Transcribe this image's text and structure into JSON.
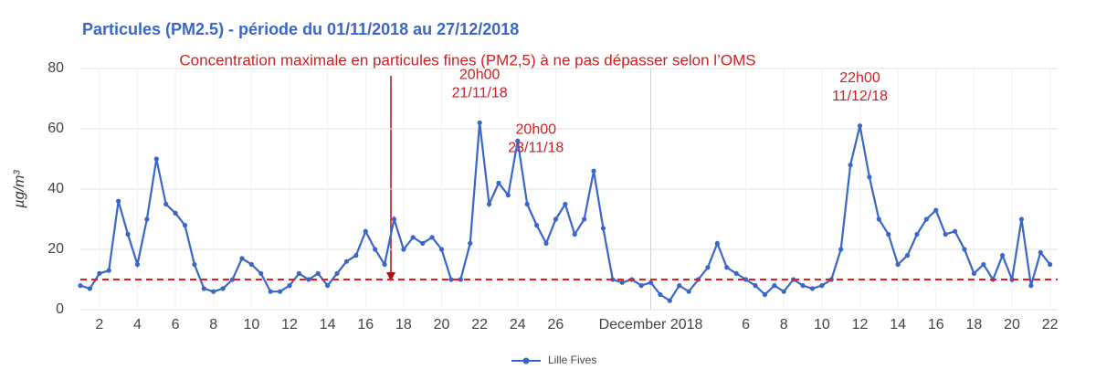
{
  "chart_data": {
    "type": "line",
    "title": "Particules (PM2.5) - période du 01/11/2018 au 27/12/2018",
    "y_label": "µg/m³",
    "annotation": "Concentration maximale en particules fines (PM2,5) à ne pas dépasser selon l’OMS",
    "peak_labels": [
      {
        "lines": [
          "20h00",
          "21/11/18"
        ]
      },
      {
        "lines": [
          "20h00",
          "23/11/18"
        ]
      },
      {
        "lines": [
          "22h00",
          "11/12/18"
        ]
      }
    ],
    "threshold": 10,
    "threshold_color": "#e02020",
    "grid": true,
    "legend": "bottom",
    "xlim": [
      0,
      51.4
    ],
    "ylim": [
      0,
      80
    ],
    "yticks": [
      0,
      20,
      40,
      60,
      80
    ],
    "xticks": [
      {
        "value": 1,
        "label": "2"
      },
      {
        "value": 3,
        "label": "4"
      },
      {
        "value": 5,
        "label": "6"
      },
      {
        "value": 7,
        "label": "8"
      },
      {
        "value": 9,
        "label": "10"
      },
      {
        "value": 11,
        "label": "12"
      },
      {
        "value": 13,
        "label": "14"
      },
      {
        "value": 15,
        "label": "16"
      },
      {
        "value": 17,
        "label": "18"
      },
      {
        "value": 19,
        "label": "20"
      },
      {
        "value": 21,
        "label": "22"
      },
      {
        "value": 23,
        "label": "24"
      },
      {
        "value": 25,
        "label": "26"
      },
      {
        "value": 30,
        "label": "December 2018"
      },
      {
        "value": 35,
        "label": "6"
      },
      {
        "value": 37,
        "label": "8"
      },
      {
        "value": 39,
        "label": "10"
      },
      {
        "value": 41,
        "label": "12"
      },
      {
        "value": 43,
        "label": "14"
      },
      {
        "value": 45,
        "label": "16"
      },
      {
        "value": 47,
        "label": "18"
      },
      {
        "value": 49,
        "label": "20"
      },
      {
        "value": 51,
        "label": "22"
      }
    ],
    "x": [
      0,
      0.5,
      1,
      1.5,
      2,
      2.5,
      3,
      3.5,
      4,
      4.5,
      5,
      5.5,
      6,
      6.5,
      7,
      7.5,
      8,
      8.5,
      9,
      9.5,
      10,
      10.5,
      11,
      11.5,
      12,
      12.5,
      13,
      13.5,
      14,
      14.5,
      15,
      15.5,
      16,
      16.5,
      17,
      17.5,
      18,
      18.5,
      19,
      19.5,
      20,
      20.5,
      21,
      21.5,
      22,
      22.5,
      23,
      23.5,
      24,
      24.5,
      25,
      25.5,
      26,
      26.5,
      27,
      27.5,
      28,
      28.5,
      29,
      29.5,
      30,
      30.5,
      31,
      31.5,
      32,
      32.5,
      33,
      33.5,
      34,
      34.5,
      35,
      35.5,
      36,
      36.5,
      37,
      37.5,
      38,
      38.5,
      39,
      39.5,
      40,
      40.5,
      41,
      41.5,
      42,
      42.5,
      43,
      43.5,
      44,
      44.5,
      45,
      45.5,
      46,
      46.5,
      47,
      47.5,
      48,
      48.5,
      49,
      49.5,
      50,
      50.5,
      51
    ],
    "series": [
      {
        "name": "Lille Fives",
        "color": "#3a66c8",
        "values": [
          8,
          7,
          12,
          13,
          36,
          25,
          15,
          30,
          50,
          35,
          32,
          28,
          15,
          7,
          6,
          7,
          10,
          17,
          15,
          12,
          6,
          6,
          8,
          12,
          10,
          12,
          8,
          12,
          16,
          18,
          26,
          20,
          15,
          30,
          20,
          24,
          22,
          24,
          20,
          10,
          10,
          22,
          62,
          35,
          42,
          38,
          56,
          35,
          28,
          22,
          30,
          35,
          25,
          30,
          46,
          27,
          10,
          9,
          10,
          8,
          9,
          5,
          3,
          8,
          6,
          10,
          14,
          22,
          14,
          12,
          10,
          8,
          5,
          8,
          6,
          10,
          8,
          7,
          8,
          10,
          20,
          48,
          61,
          44,
          30,
          25,
          15,
          18,
          25,
          30,
          33,
          25,
          26,
          20,
          12,
          15,
          10,
          18,
          10,
          30,
          8,
          19,
          15
        ]
      }
    ]
  }
}
